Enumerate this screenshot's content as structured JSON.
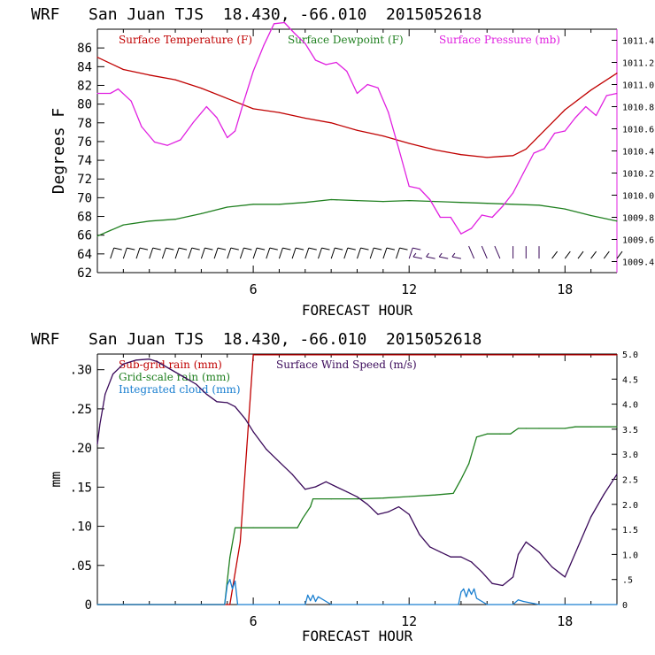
{
  "chart_data": [
    {
      "type": "line",
      "title": "WRF   San Juan TJS  18.430, -66.010  2015052618",
      "xlabel": "FORECAST HOUR",
      "ylabel": "Degrees F",
      "xlim": [
        0,
        20
      ],
      "ylim": [
        62,
        88
      ],
      "xticks": [
        6,
        12,
        18
      ],
      "yticks": [
        62,
        64,
        66,
        68,
        70,
        72,
        74,
        76,
        78,
        80,
        82,
        84,
        86
      ],
      "y2lim": [
        1009.3,
        1011.5
      ],
      "y2ticks": [
        "1009.4",
        "1009.6",
        "1009.8",
        "1010.0",
        "1010.2",
        "1010.4",
        "1010.6",
        "1010.8",
        "1011.0",
        "1011.2",
        "1011.4"
      ],
      "grid": false,
      "legend": [
        {
          "name": "Surface Temperature (F)",
          "color": "#c00000"
        },
        {
          "name": "Surface Dewpoint (F)",
          "color": "#208020"
        },
        {
          "name": "Surface Pressure (mb)",
          "color": "#e020e0"
        }
      ],
      "series": [
        {
          "name": "Surface Temperature (F)",
          "axis": "left",
          "color": "#c00000",
          "x": [
            0,
            1,
            2,
            3,
            4,
            5,
            6,
            7,
            8,
            9,
            10,
            11,
            12,
            13,
            14,
            15,
            15.5,
            16,
            16.5,
            17,
            18,
            19,
            20
          ],
          "y": [
            85,
            83.7,
            83.1,
            82.6,
            81.7,
            80.6,
            79.5,
            79.1,
            78.5,
            78,
            77.2,
            76.6,
            75.8,
            75.1,
            74.6,
            74.3,
            74.4,
            74.5,
            75.2,
            76.6,
            79.4,
            81.5,
            83.3
          ]
        },
        {
          "name": "Surface Dewpoint (F)",
          "axis": "left",
          "color": "#208020",
          "x": [
            0,
            0.5,
            1,
            2,
            3,
            4,
            5,
            6,
            7,
            8,
            9,
            10,
            11,
            12,
            13,
            14,
            15,
            16,
            17,
            18,
            19,
            20
          ],
          "y": [
            65.9,
            66.5,
            67.1,
            67.5,
            67.7,
            68.3,
            69,
            69.3,
            69.3,
            69.5,
            69.8,
            69.7,
            69.6,
            69.7,
            69.6,
            69.5,
            69.4,
            69.3,
            69.2,
            68.8,
            68.1,
            67.5
          ]
        },
        {
          "name": "Surface Pressure (mb)",
          "axis": "right",
          "color": "#e020e0",
          "x": [
            0,
            0.5,
            0.8,
            1.3,
            1.7,
            2.2,
            2.7,
            3.2,
            3.7,
            4.2,
            4.6,
            5,
            5.3,
            5.6,
            6,
            6.4,
            6.8,
            7.2,
            7.6,
            8,
            8.4,
            8.8,
            9.2,
            9.6,
            10,
            10.4,
            10.8,
            11.2,
            11.6,
            12,
            12.4,
            12.8,
            13.2,
            13.6,
            14,
            14.4,
            14.8,
            15.2,
            15.6,
            16,
            16.4,
            16.8,
            17.2,
            17.6,
            18,
            18.4,
            18.8,
            19.2,
            19.6,
            20
          ],
          "y": [
            1010.92,
            1010.92,
            1010.96,
            1010.85,
            1010.62,
            1010.48,
            1010.45,
            1010.5,
            1010.66,
            1010.8,
            1010.7,
            1010.52,
            1010.58,
            1010.82,
            1011.12,
            1011.35,
            1011.55,
            1011.56,
            1011.46,
            1011.37,
            1011.22,
            1011.18,
            1011.2,
            1011.12,
            1010.92,
            1011.0,
            1010.97,
            1010.75,
            1010.42,
            1010.08,
            1010.06,
            1009.96,
            1009.8,
            1009.8,
            1009.65,
            1009.7,
            1009.82,
            1009.8,
            1009.9,
            1010.02,
            1010.2,
            1010.38,
            1010.42,
            1010.56,
            1010.58,
            1010.7,
            1010.8,
            1010.72,
            1010.9,
            1010.92
          ]
        }
      ],
      "wind_barbs": {
        "x": [
          0.5,
          1,
          1.5,
          2,
          2.5,
          3,
          3.5,
          4,
          4.5,
          5,
          5.5,
          6,
          6.5,
          7,
          7.5,
          8,
          8.5,
          9,
          9.5,
          10,
          10.5,
          11,
          11.5,
          12,
          12.5,
          13,
          13.5,
          14,
          14.5,
          15,
          15.5,
          16,
          16.5,
          17,
          17.5,
          18,
          18.5,
          19,
          19.5,
          20
        ]
      }
    },
    {
      "type": "line",
      "title": "WRF   San Juan TJS  18.430, -66.010  2015052618",
      "xlabel": "FORECAST HOUR",
      "ylabel": "mm",
      "xlim": [
        0,
        20
      ],
      "ylim": [
        0,
        0.32
      ],
      "xticks": [
        6,
        12,
        18
      ],
      "yticks": [
        ".30",
        ".25",
        ".20",
        ".15",
        ".10",
        ".05",
        "0"
      ],
      "y2lim": [
        0,
        5.0
      ],
      "y2ticks": [
        "5.0",
        "4.5",
        "4.0",
        "3.5",
        "3.0",
        "2.5",
        "2.0",
        "1.5",
        "1.0",
        ".5",
        "0"
      ],
      "grid": false,
      "legend": [
        {
          "name": "Sub-grid rain (mm)",
          "color": "#c00000"
        },
        {
          "name": "Surface Wind Speed (m/s)",
          "color": "#3a0a5a"
        },
        {
          "name": "Grid-scale rain (mm)",
          "color": "#208020"
        },
        {
          "name": "Integrated cloud (mm)",
          "color": "#1a7fd0"
        }
      ],
      "series": [
        {
          "name": "Sub-grid rain (mm)",
          "axis": "left",
          "color": "#c00000",
          "x": [
            0,
            5.1,
            5.5,
            6,
            20
          ],
          "y": [
            0,
            0,
            0.08,
            0.319,
            0.319
          ]
        },
        {
          "name": "Grid-scale rain (mm)",
          "axis": "left",
          "color": "#208020",
          "x": [
            0,
            4.9,
            5.1,
            5.3,
            6,
            7.7,
            7.9,
            8.2,
            8.3,
            9,
            10,
            11,
            12,
            13,
            13.7,
            14,
            14.3,
            14.6,
            15,
            15.5,
            15.9,
            16.2,
            16.5,
            17,
            18,
            18.4,
            19,
            20
          ],
          "y": [
            0,
            0,
            0.06,
            0.098,
            0.098,
            0.098,
            0.11,
            0.125,
            0.135,
            0.135,
            0.135,
            0.136,
            0.138,
            0.14,
            0.142,
            0.16,
            0.18,
            0.214,
            0.218,
            0.218,
            0.218,
            0.225,
            0.225,
            0.225,
            0.225,
            0.227,
            0.227,
            0.227
          ]
        },
        {
          "name": "Surface Wind Speed (m/s)",
          "axis": "right",
          "color": "#3a0a5a",
          "x": [
            0,
            0.1,
            0.3,
            0.6,
            1,
            1.5,
            2,
            2.3,
            2.8,
            3.3,
            3.8,
            4.2,
            4.6,
            5,
            5.3,
            5.7,
            6,
            6.5,
            7,
            7.5,
            8,
            8.4,
            8.8,
            9.2,
            9.6,
            10,
            10.4,
            10.8,
            11.2,
            11.6,
            12,
            12.4,
            12.8,
            13.2,
            13.6,
            14,
            14.4,
            14.8,
            15.2,
            15.6,
            16,
            16.2,
            16.5,
            17,
            17.5,
            18,
            18.5,
            19,
            19.5,
            20
          ],
          "y": [
            3.2,
            3.6,
            4.2,
            4.6,
            4.8,
            4.88,
            4.9,
            4.85,
            4.7,
            4.55,
            4.4,
            4.2,
            4.05,
            4.03,
            3.95,
            3.7,
            3.45,
            3.1,
            2.85,
            2.6,
            2.3,
            2.35,
            2.45,
            2.35,
            2.25,
            2.15,
            2.0,
            1.8,
            1.85,
            1.95,
            1.8,
            1.4,
            1.15,
            1.05,
            0.95,
            0.95,
            0.85,
            0.65,
            0.42,
            0.38,
            0.55,
            1.0,
            1.25,
            1.05,
            0.75,
            0.55,
            1.15,
            1.75,
            2.2,
            2.6
          ]
        },
        {
          "name": "Integrated cloud (mm)",
          "axis": "left",
          "color": "#1a7fd0",
          "x": [
            0,
            4.9,
            5.0,
            5.1,
            5.2,
            5.3,
            5.4,
            6.0,
            8.0,
            8.1,
            8.2,
            8.3,
            8.4,
            8.5,
            9,
            12,
            13.9,
            14.0,
            14.1,
            14.2,
            14.3,
            14.4,
            14.5,
            14.6,
            15,
            16.0,
            16.2,
            16.4,
            17,
            20
          ],
          "y": [
            0,
            0,
            0.025,
            0.032,
            0.02,
            0.03,
            0,
            0,
            0,
            0.012,
            0.005,
            0.012,
            0.004,
            0.01,
            0,
            0,
            0,
            0.016,
            0.02,
            0.01,
            0.02,
            0.013,
            0.02,
            0.008,
            0,
            0,
            0.006,
            0.004,
            0,
            0
          ]
        }
      ]
    }
  ]
}
